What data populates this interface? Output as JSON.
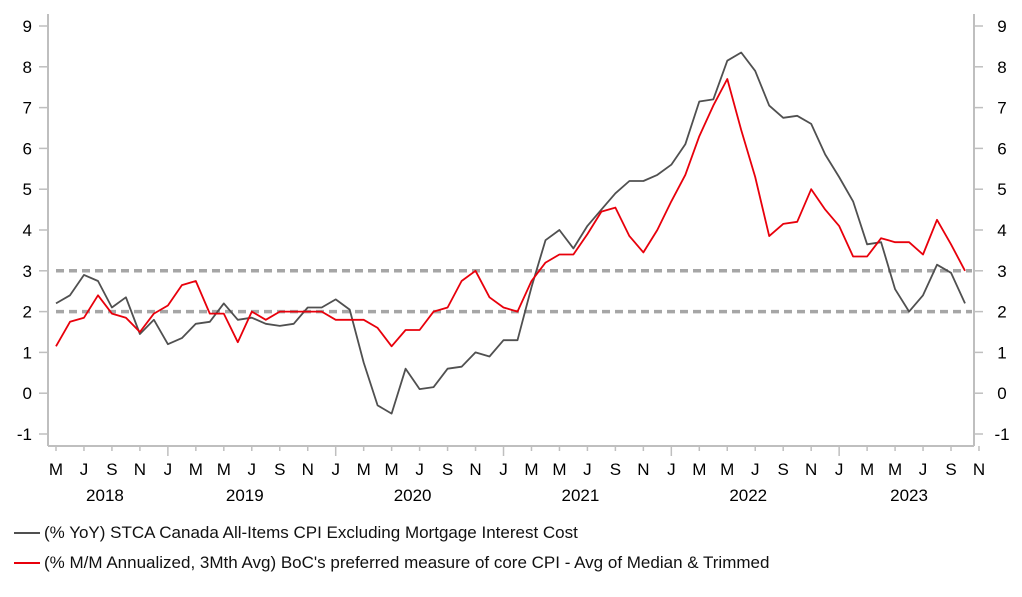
{
  "chart_data": {
    "type": "line",
    "title": "",
    "xlabel": "",
    "ylabel": "",
    "ylim": [
      -1,
      9
    ],
    "yticks": [
      "-1",
      "0",
      "1",
      "2",
      "3",
      "4",
      "5",
      "6",
      "7",
      "8",
      "9"
    ],
    "y_axis_sides": [
      "left",
      "right"
    ],
    "grid": false,
    "x_start": "2018-05",
    "x_end": "2023-11",
    "x_month_ticks": [
      "M",
      "J",
      "S",
      "N",
      "J",
      "M",
      "M",
      "J",
      "S",
      "N",
      "J",
      "M",
      "M",
      "J",
      "S",
      "N",
      "J",
      "M",
      "M",
      "J",
      "S",
      "N",
      "J",
      "M",
      "M",
      "J",
      "S",
      "N",
      "J",
      "M",
      "M",
      "J",
      "S",
      "N"
    ],
    "x_year_labels": [
      "2018",
      "2019",
      "2020",
      "2021",
      "2022",
      "2023"
    ],
    "reference_lines": [
      {
        "y": 2,
        "style": "dashed",
        "color": "#a6a6a6"
      },
      {
        "y": 3,
        "style": "dashed",
        "color": "#a6a6a6"
      }
    ],
    "legend_position": "bottom",
    "series": [
      {
        "name": "(% YoY) STCA Canada All-Items CPI Excluding Mortgage Interest Cost",
        "color": "#505050",
        "values": [
          2.2,
          2.4,
          2.9,
          2.75,
          2.1,
          2.35,
          1.45,
          1.8,
          1.2,
          1.35,
          1.7,
          1.75,
          2.2,
          1.8,
          1.85,
          1.7,
          1.65,
          1.7,
          2.1,
          2.1,
          2.3,
          2.05,
          0.75,
          -0.3,
          -0.5,
          0.6,
          0.1,
          0.15,
          0.6,
          0.65,
          1.0,
          0.9,
          1.3,
          1.3,
          2.6,
          3.75,
          4.0,
          3.55,
          4.1,
          4.5,
          4.9,
          5.2,
          5.2,
          5.35,
          5.6,
          6.1,
          7.15,
          7.2,
          8.15,
          8.35,
          7.9,
          7.05,
          6.75,
          6.8,
          6.6,
          5.85,
          5.3,
          4.7,
          3.65,
          3.7,
          2.55,
          2.0,
          2.4,
          3.15,
          2.95,
          2.2
        ]
      },
      {
        "name": "(% M/M Annualized, 3Mth Avg) BoC's preferred measure of core CPI - Avg of Median & Trimmed",
        "color": "#e8000b",
        "values": [
          1.15,
          1.75,
          1.85,
          2.4,
          1.95,
          1.85,
          1.5,
          1.95,
          2.15,
          2.65,
          2.75,
          1.95,
          1.95,
          1.25,
          2.0,
          1.8,
          2.0,
          2.0,
          2.0,
          2.0,
          1.8,
          1.8,
          1.8,
          1.6,
          1.15,
          1.55,
          1.55,
          2.0,
          2.1,
          2.75,
          3.0,
          2.35,
          2.1,
          2.0,
          2.75,
          3.2,
          3.4,
          3.4,
          3.9,
          4.45,
          4.55,
          3.85,
          3.45,
          4.0,
          4.7,
          5.35,
          6.3,
          7.05,
          7.7,
          6.45,
          5.3,
          3.85,
          4.15,
          4.2,
          5.0,
          4.5,
          4.1,
          3.35,
          3.35,
          3.8,
          3.7,
          3.7,
          3.4,
          4.25,
          3.65,
          3.0
        ]
      }
    ]
  },
  "legend": {
    "items": [
      {
        "label": "(% YoY) STCA Canada All-Items CPI Excluding Mortgage Interest Cost",
        "color": "#505050"
      },
      {
        "label": "(% M/M Annualized, 3Mth Avg) BoC's preferred measure of core CPI - Avg of Median & Trimmed",
        "color": "#e8000b"
      }
    ]
  }
}
